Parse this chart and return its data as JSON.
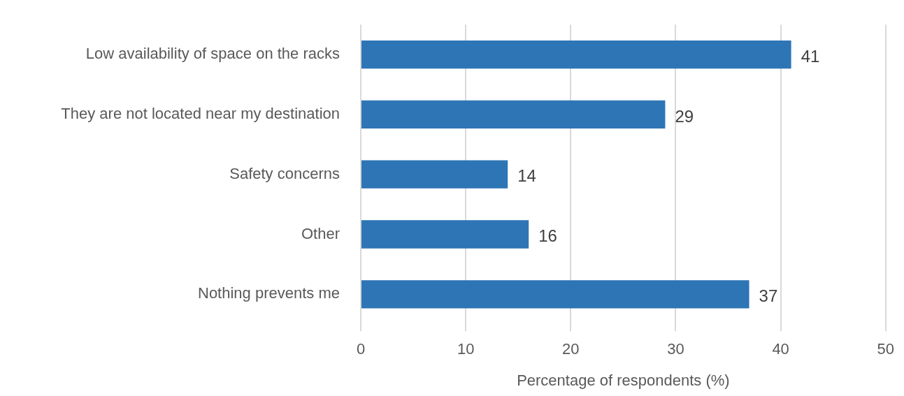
{
  "chart_data": {
    "type": "bar",
    "orientation": "horizontal",
    "xlabel": "Percentage of respondents (%)",
    "categories": [
      "Low availability of space on the racks",
      "They are not located near my destination",
      "Safety concerns",
      "Other",
      "Nothing prevents me"
    ],
    "values": [
      41,
      29,
      14,
      16,
      37
    ],
    "color": "#2e75b6",
    "xlim": [
      0,
      50
    ],
    "xticks": [
      0,
      10,
      20,
      30,
      40,
      50
    ],
    "grid": "x",
    "legend": false,
    "data_labels": true
  }
}
